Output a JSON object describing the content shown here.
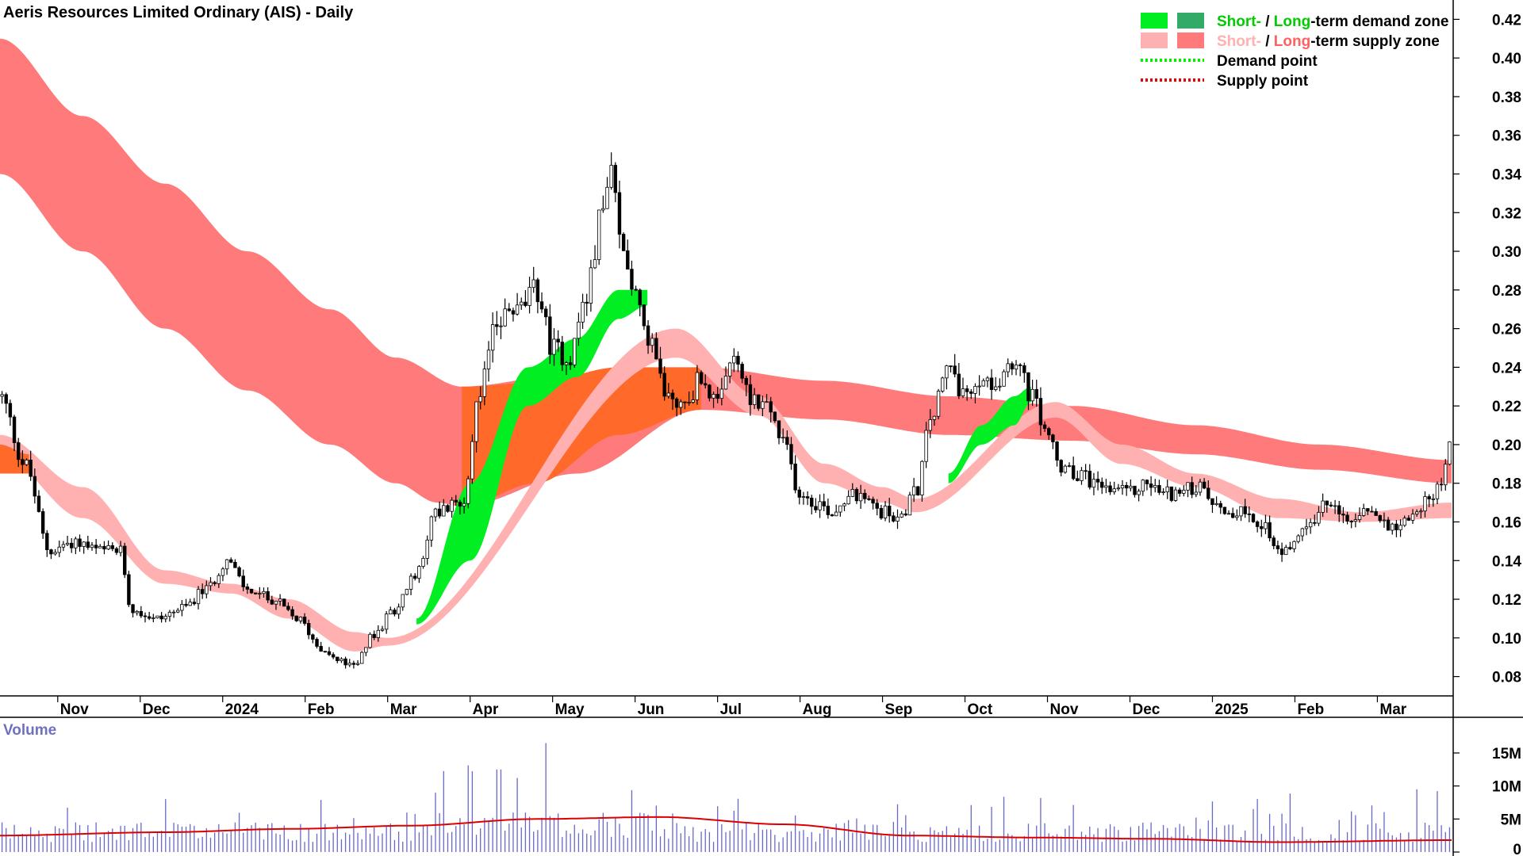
{
  "chart_data": {
    "type": "candlestick",
    "title": "Aeris Resources Limited Ordinary (AIS) - Daily",
    "price_axis": {
      "ylim": [
        0.07,
        0.43
      ],
      "ticks": [
        "0.08",
        "0.10",
        "0.12",
        "0.14",
        "0.16",
        "0.18",
        "0.20",
        "0.22",
        "0.24",
        "0.26",
        "0.28",
        "0.30",
        "0.32",
        "0.34",
        "0.36",
        "0.38",
        "0.40",
        "0.42"
      ]
    },
    "x_axis": {
      "start_month_index": 0,
      "end_month_index": 17.6,
      "labels": [
        {
          "label": "Nov",
          "month_index": 0.7
        },
        {
          "label": "Dec",
          "month_index": 1.7
        },
        {
          "label": "2024",
          "month_index": 2.7
        },
        {
          "label": "Feb",
          "month_index": 3.7
        },
        {
          "label": "Mar",
          "month_index": 4.7
        },
        {
          "label": "Apr",
          "month_index": 5.7
        },
        {
          "label": "May",
          "month_index": 6.7
        },
        {
          "label": "Jun",
          "month_index": 7.7
        },
        {
          "label": "Jul",
          "month_index": 8.7
        },
        {
          "label": "Aug",
          "month_index": 9.7
        },
        {
          "label": "Sep",
          "month_index": 10.7
        },
        {
          "label": "Oct",
          "month_index": 11.7
        },
        {
          "label": "Nov",
          "month_index": 12.7
        },
        {
          "label": "Dec",
          "month_index": 13.7
        },
        {
          "label": "2025",
          "month_index": 14.7
        },
        {
          "label": "Feb",
          "month_index": 15.7
        },
        {
          "label": "Mar",
          "month_index": 16.7
        }
      ]
    },
    "price_path": [
      [
        0,
        0.225
      ],
      [
        0.3,
        0.19
      ],
      [
        0.6,
        0.145
      ],
      [
        0.9,
        0.15
      ],
      [
        1.2,
        0.145
      ],
      [
        1.45,
        0.145
      ],
      [
        1.6,
        0.115
      ],
      [
        1.9,
        0.11
      ],
      [
        2.2,
        0.115
      ],
      [
        2.5,
        0.125
      ],
      [
        2.75,
        0.14
      ],
      [
        3.0,
        0.125
      ],
      [
        3.3,
        0.12
      ],
      [
        3.6,
        0.11
      ],
      [
        3.9,
        0.095
      ],
      [
        4.1,
        0.088
      ],
      [
        4.3,
        0.085
      ],
      [
        4.5,
        0.1
      ],
      [
        4.8,
        0.115
      ],
      [
        5.0,
        0.13
      ],
      [
        5.3,
        0.165
      ],
      [
        5.6,
        0.17
      ],
      [
        5.8,
        0.22
      ],
      [
        6.0,
        0.265
      ],
      [
        6.3,
        0.27
      ],
      [
        6.5,
        0.28
      ],
      [
        6.7,
        0.25
      ],
      [
        6.9,
        0.245
      ],
      [
        7.1,
        0.275
      ],
      [
        7.3,
        0.32
      ],
      [
        7.4,
        0.34
      ],
      [
        7.55,
        0.3
      ],
      [
        7.75,
        0.275
      ],
      [
        7.9,
        0.25
      ],
      [
        8.1,
        0.225
      ],
      [
        8.3,
        0.22
      ],
      [
        8.5,
        0.235
      ],
      [
        8.7,
        0.22
      ],
      [
        8.9,
        0.245
      ],
      [
        9.1,
        0.225
      ],
      [
        9.3,
        0.22
      ],
      [
        9.5,
        0.2
      ],
      [
        9.7,
        0.175
      ],
      [
        9.9,
        0.17
      ],
      [
        10.1,
        0.165
      ],
      [
        10.3,
        0.175
      ],
      [
        10.5,
        0.17
      ],
      [
        10.7,
        0.165
      ],
      [
        10.9,
        0.162
      ],
      [
        11.1,
        0.175
      ],
      [
        11.3,
        0.215
      ],
      [
        11.5,
        0.24
      ],
      [
        11.7,
        0.225
      ],
      [
        11.9,
        0.23
      ],
      [
        12.1,
        0.235
      ],
      [
        12.3,
        0.245
      ],
      [
        12.5,
        0.225
      ],
      [
        12.7,
        0.205
      ],
      [
        12.9,
        0.185
      ],
      [
        13.1,
        0.185
      ],
      [
        13.3,
        0.18
      ],
      [
        13.5,
        0.175
      ],
      [
        13.7,
        0.175
      ],
      [
        13.9,
        0.18
      ],
      [
        14.1,
        0.175
      ],
      [
        14.3,
        0.175
      ],
      [
        14.5,
        0.178
      ],
      [
        14.7,
        0.172
      ],
      [
        14.9,
        0.165
      ],
      [
        15.1,
        0.165
      ],
      [
        15.3,
        0.16
      ],
      [
        15.5,
        0.145
      ],
      [
        15.7,
        0.15
      ],
      [
        15.9,
        0.16
      ],
      [
        16.1,
        0.17
      ],
      [
        16.3,
        0.16
      ],
      [
        16.5,
        0.165
      ],
      [
        16.7,
        0.162
      ],
      [
        16.9,
        0.158
      ],
      [
        17.1,
        0.163
      ],
      [
        17.3,
        0.17
      ],
      [
        17.45,
        0.18
      ],
      [
        17.6,
        0.2
      ]
    ],
    "zones": [
      {
        "name": "Long-term supply zone",
        "color": "#ff7a7a",
        "top": [
          [
            0,
            0.41
          ],
          [
            1,
            0.37
          ],
          [
            2,
            0.335
          ],
          [
            3,
            0.3
          ],
          [
            4,
            0.27
          ],
          [
            4.8,
            0.245
          ],
          [
            5.6,
            0.23
          ],
          [
            7,
            0.237
          ],
          [
            8.5,
            0.24
          ],
          [
            10,
            0.233
          ],
          [
            11.5,
            0.225
          ],
          [
            13,
            0.22
          ],
          [
            14.5,
            0.21
          ],
          [
            16,
            0.2
          ],
          [
            17.6,
            0.192
          ]
        ],
        "bottom": [
          [
            0,
            0.34
          ],
          [
            1,
            0.3
          ],
          [
            2,
            0.26
          ],
          [
            3,
            0.228
          ],
          [
            4,
            0.2
          ],
          [
            4.8,
            0.18
          ],
          [
            5.3,
            0.17
          ],
          [
            5.6,
            0.168
          ],
          [
            7,
            0.185
          ],
          [
            8.5,
            0.218
          ],
          [
            10,
            0.213
          ],
          [
            11.5,
            0.205
          ],
          [
            13,
            0.202
          ],
          [
            14.5,
            0.195
          ],
          [
            16,
            0.187
          ],
          [
            17.6,
            0.18
          ]
        ]
      },
      {
        "name": "Long-term demand zone (overlap)",
        "color": "#ff6a2a",
        "top": [
          [
            5.6,
            0.23
          ],
          [
            6.5,
            0.232
          ],
          [
            7.5,
            0.24
          ],
          [
            8.5,
            0.24
          ]
        ],
        "bottom": [
          [
            5.6,
            0.168
          ],
          [
            6.5,
            0.18
          ],
          [
            7.5,
            0.205
          ],
          [
            8.5,
            0.218
          ]
        ]
      },
      {
        "name": "Short-term supply zone",
        "color": "#ffb0b0",
        "top": [
          [
            0,
            0.205
          ],
          [
            1,
            0.178
          ],
          [
            2,
            0.135
          ],
          [
            2.8,
            0.128
          ],
          [
            3.5,
            0.12
          ],
          [
            4.3,
            0.103
          ],
          [
            4.7,
            0.1
          ],
          [
            8.2,
            0.26
          ],
          [
            9.2,
            0.225
          ],
          [
            10,
            0.19
          ],
          [
            10.7,
            0.178
          ],
          [
            11.1,
            0.172
          ],
          [
            12.8,
            0.222
          ],
          [
            13.6,
            0.2
          ],
          [
            14.5,
            0.185
          ],
          [
            15.5,
            0.172
          ],
          [
            16.5,
            0.165
          ],
          [
            17.6,
            0.17
          ]
        ],
        "bottom": [
          [
            0,
            0.195
          ],
          [
            1,
            0.162
          ],
          [
            2,
            0.128
          ],
          [
            2.8,
            0.123
          ],
          [
            3.5,
            0.11
          ],
          [
            4.3,
            0.093
          ],
          [
            4.7,
            0.096
          ],
          [
            8.2,
            0.245
          ],
          [
            9.2,
            0.215
          ],
          [
            10,
            0.18
          ],
          [
            10.7,
            0.17
          ],
          [
            11.1,
            0.165
          ],
          [
            12.8,
            0.214
          ],
          [
            13.6,
            0.19
          ],
          [
            14.5,
            0.178
          ],
          [
            15.5,
            0.162
          ],
          [
            16.5,
            0.16
          ],
          [
            17.6,
            0.162
          ]
        ]
      },
      {
        "name": "Short-term demand zone",
        "color": "#00ee22",
        "top": [
          [
            5.05,
            0.11
          ],
          [
            5.7,
            0.18
          ],
          [
            6.4,
            0.24
          ],
          [
            7.0,
            0.255
          ],
          [
            7.5,
            0.28
          ],
          [
            7.85,
            0.28
          ]
        ],
        "bottom": [
          [
            5.05,
            0.107
          ],
          [
            5.7,
            0.14
          ],
          [
            6.4,
            0.22
          ],
          [
            7.0,
            0.235
          ],
          [
            7.5,
            0.265
          ],
          [
            7.85,
            0.272
          ]
        ]
      },
      {
        "name": "Short-term demand zone",
        "color": "#00ee22",
        "top": [
          [
            11.5,
            0.185
          ],
          [
            11.9,
            0.21
          ],
          [
            12.3,
            0.225
          ],
          [
            12.5,
            0.23
          ]
        ],
        "bottom": [
          [
            11.5,
            0.18
          ],
          [
            11.9,
            0.2
          ],
          [
            12.3,
            0.21
          ],
          [
            12.5,
            0.222
          ]
        ]
      },
      {
        "name": "Short-term overlap",
        "color": "#ff6a2a",
        "top": [
          [
            0,
            0.2
          ],
          [
            0.35,
            0.195
          ]
        ],
        "bottom": [
          [
            0,
            0.185
          ],
          [
            0.35,
            0.185
          ]
        ]
      }
    ],
    "volume": {
      "label": "Volume",
      "ylim": [
        0,
        18
      ],
      "unit": "M",
      "ticks": [
        {
          "label": "0",
          "value": 0
        },
        {
          "label": "5M",
          "value": 5
        },
        {
          "label": "10M",
          "value": 10
        },
        {
          "label": "15M",
          "value": 15
        }
      ],
      "average": [
        [
          0,
          2.5
        ],
        [
          2,
          3
        ],
        [
          3.5,
          3.5
        ],
        [
          5,
          4
        ],
        [
          6.5,
          5
        ],
        [
          8,
          5.3
        ],
        [
          9.5,
          4.2
        ],
        [
          11,
          2.5
        ],
        [
          12.5,
          2.2
        ],
        [
          14,
          2
        ],
        [
          15.5,
          1.5
        ],
        [
          17.6,
          1.8
        ]
      ]
    },
    "legend": [
      {
        "prefix": "Short-",
        "mid": " / ",
        "suffix_a": "Long",
        "suffix_b": "-term demand zone",
        "color_a": "#00ee22",
        "color_b": "#33aa66",
        "text_a_color": "#00cc00",
        "text_b_color": "#00cc00"
      },
      {
        "prefix": "Short-",
        "mid": " / ",
        "suffix_a": "Long",
        "suffix_b": "-term supply zone",
        "color_a": "#ffb0b0",
        "color_b": "#ff7a7a",
        "text_a_color": "#ffb0b0",
        "text_b_color": "#ff6060"
      },
      {
        "label": "Demand point",
        "color": "#00ee00"
      },
      {
        "label": "Supply point",
        "color": "#ee0000"
      }
    ]
  }
}
